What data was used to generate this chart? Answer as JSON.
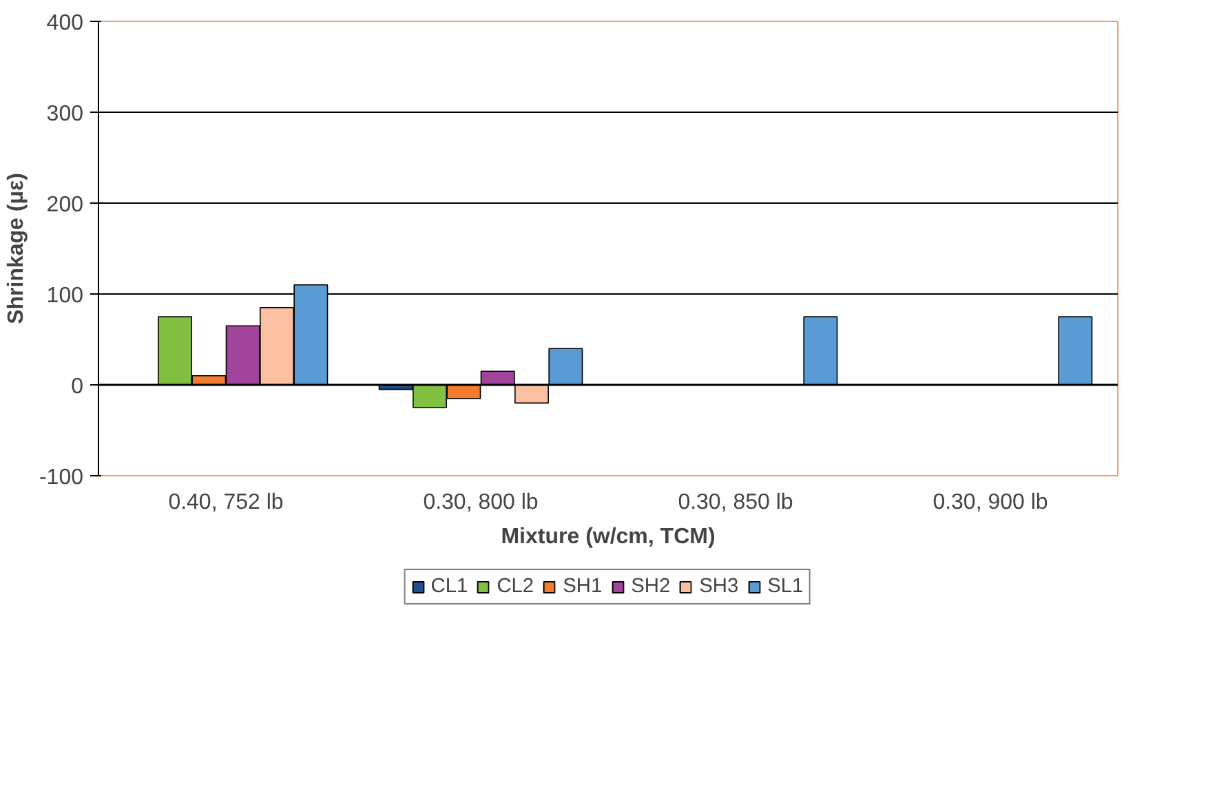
{
  "chart_data": {
    "type": "bar",
    "xlabel": "Mixture (w/cm, TCM)",
    "ylabel": "Shrinkage (με)",
    "categories": [
      "0.40, 752 lb",
      "0.30, 800 lb",
      "0.30, 850 lb",
      "0.30, 900 lb"
    ],
    "series": [
      {
        "name": "CL1",
        "color": "#1f4e8c",
        "values": [
          null,
          -5,
          null,
          null
        ]
      },
      {
        "name": "CL2",
        "color": "#80bf40",
        "values": [
          75,
          -25,
          null,
          null
        ]
      },
      {
        "name": "SH1",
        "color": "#f47c30",
        "values": [
          10,
          -15,
          null,
          null
        ]
      },
      {
        "name": "SH2",
        "color": "#a0449c",
        "values": [
          65,
          15,
          null,
          null
        ]
      },
      {
        "name": "SH3",
        "color": "#fac0a0",
        "values": [
          85,
          -20,
          null,
          null
        ]
      },
      {
        "name": "SL1",
        "color": "#5b9bd5",
        "values": [
          110,
          40,
          75,
          75
        ]
      }
    ],
    "ylim": [
      -100,
      400
    ],
    "yticks": [
      -100,
      0,
      100,
      200,
      300,
      400
    ],
    "grid": "y",
    "legend": "bottom"
  }
}
